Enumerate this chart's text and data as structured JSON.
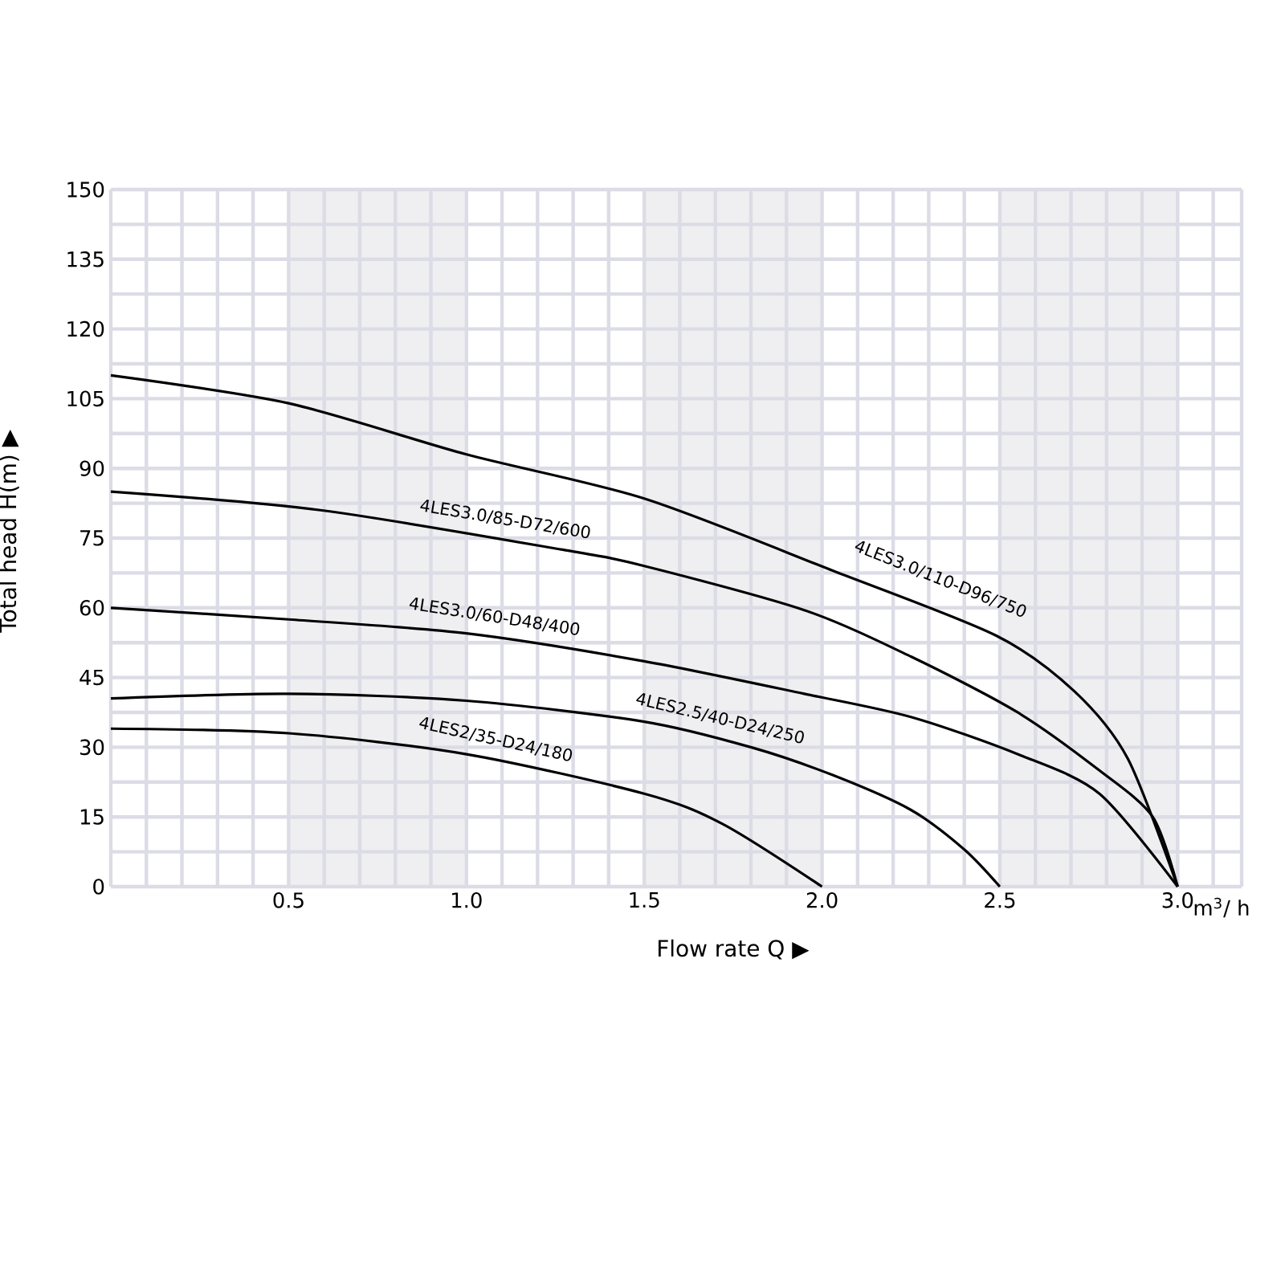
{
  "chart_data": {
    "type": "line",
    "xlabel": "Flow rate  Q  ▶",
    "ylabel": "Total head H(m) ▶",
    "annotations": [
      "m$^{3}$/ h"
    ],
    "xlim": [
      0,
      3.18
    ],
    "ylim": [
      0,
      150
    ],
    "xticks": [
      0.5,
      {
        "value": 1,
        "label": "1.0"
      },
      1.5,
      {
        "value": 2,
        "label": "2.0"
      },
      2.5,
      {
        "value": 3,
        "label": "3.0"
      }
    ],
    "yticks": [
      0,
      15,
      30,
      45,
      60,
      75,
      90,
      105,
      120,
      135,
      150
    ],
    "grid": true,
    "bands": [
      {
        "axis": "x",
        "from": 0.5,
        "to": 1.0,
        "color": "#efeff1"
      },
      {
        "axis": "x",
        "from": 1.5,
        "to": 2.0,
        "color": "#efeff1"
      },
      {
        "axis": "x",
        "from": 2.5,
        "to": 3.0,
        "color": "#efeff1"
      }
    ],
    "series": [
      {
        "name": "4LES3.0/110-D96/750",
        "color": "#000000",
        "x": [
          0,
          0.5,
          1.0,
          1.5,
          2.03,
          2.49,
          2.71,
          2.86,
          3.0
        ],
        "values": [
          110,
          104,
          93,
          83.5,
          68,
          54,
          42,
          27.5,
          0
        ]
      },
      {
        "name": "4LES3.0/85-D72/600",
        "color": "#000000",
        "x": [
          0,
          0.59,
          1.27,
          1.5,
          1.95,
          2.25,
          2.55,
          2.78,
          2.93,
          3.0
        ],
        "values": [
          85,
          81,
          72.5,
          69,
          59.5,
          49.5,
          37.5,
          25,
          15,
          0
        ]
      },
      {
        "name": "4LES3.0/60-D48/400",
        "color": "#000000",
        "x": [
          0,
          0.5,
          1.0,
          1.5,
          1.95,
          2.25,
          2.55,
          2.78,
          3.0
        ],
        "values": [
          60,
          57.5,
          54.5,
          48.5,
          41.5,
          36.5,
          28.5,
          20,
          0
        ]
      },
      {
        "name": "4LES2.5/40-D24/250",
        "color": "#000000",
        "x": [
          0,
          0.5,
          1.0,
          1.5,
          1.8,
          2.03,
          2.25,
          2.4,
          2.5
        ],
        "values": [
          40.5,
          41.5,
          40,
          35.5,
          30,
          24,
          16.5,
          8,
          0
        ]
      },
      {
        "name": "4LES2/35-D24/180",
        "color": "#000000",
        "x": [
          0,
          0.5,
          1.0,
          1.5,
          1.72,
          2.0
        ],
        "values": [
          34,
          33,
          28.5,
          20,
          13.5,
          0
        ]
      }
    ]
  }
}
